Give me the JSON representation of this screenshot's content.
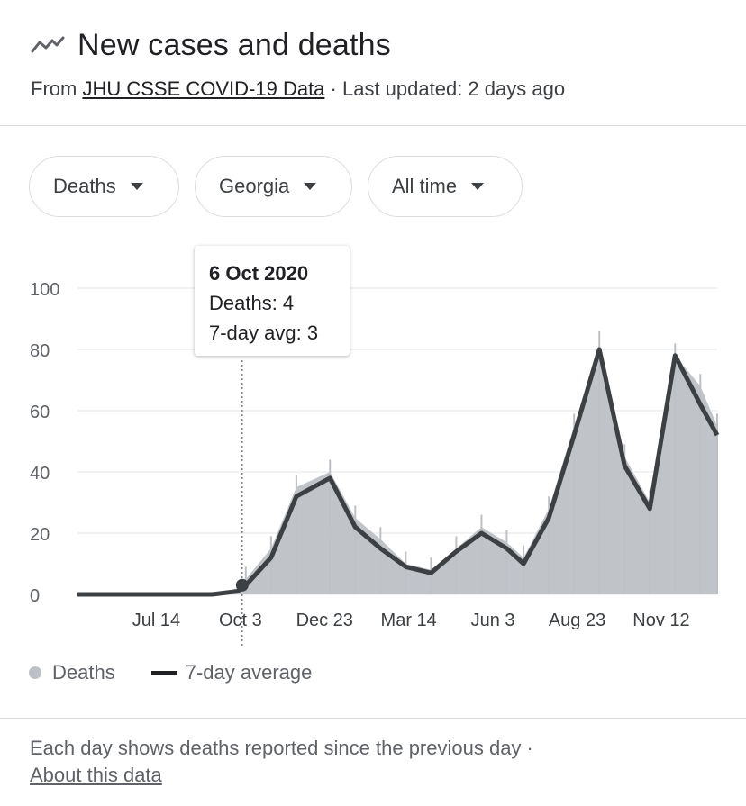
{
  "header": {
    "icon": "trend-line-icon",
    "title": "New cases and deaths",
    "source_prefix": "From",
    "source_link": "JHU CSSE COVID-19 Data",
    "updated": "· Last updated: 2 days ago"
  },
  "filters": {
    "metric": "Deaths",
    "region": "Georgia",
    "range": "All time"
  },
  "tooltip": {
    "date": "6 Oct 2020",
    "deaths_line": "Deaths: 4",
    "avg_line": "7-day avg: 3"
  },
  "legend": {
    "deaths": "Deaths",
    "avg": "7-day average"
  },
  "footer": {
    "note": "Each day shows deaths reported since the previous day  ·",
    "link": "About this data"
  },
  "colors": {
    "bars": "#bdc1c6",
    "line": "#3c4043",
    "grid": "#e8eaed",
    "highlight": "#f9c531"
  },
  "chart_data": {
    "type": "area",
    "y_ticks": [
      "0",
      "20",
      "40",
      "60",
      "80",
      "100"
    ],
    "ylim": [
      0,
      100
    ],
    "x_ticks": [
      "Jul 14",
      "Oct 3",
      "Dec 23",
      "Mar 14",
      "Jun 3",
      "Aug 23",
      "Nov 12"
    ],
    "x_tick_index": [
      1,
      2,
      3,
      4,
      5,
      6,
      7
    ],
    "series": [
      {
        "name": "Deaths",
        "x": [
          0.0,
          0.8,
          1.6,
          1.9,
          2.0,
          2.3,
          2.6,
          3.0,
          3.3,
          3.6,
          3.9,
          4.2,
          4.5,
          4.8,
          5.1,
          5.3,
          5.6,
          5.9,
          6.2,
          6.5,
          6.8,
          7.1,
          7.4,
          7.6
        ],
        "values": [
          0,
          0,
          0,
          2,
          5,
          15,
          35,
          40,
          25,
          18,
          10,
          8,
          15,
          22,
          17,
          12,
          28,
          55,
          82,
          45,
          30,
          78,
          68,
          55
        ]
      },
      {
        "name": "7-day average",
        "x": [
          0.0,
          0.8,
          1.6,
          1.9,
          2.0,
          2.3,
          2.6,
          3.0,
          3.3,
          3.6,
          3.9,
          4.2,
          4.5,
          4.8,
          5.1,
          5.3,
          5.6,
          5.9,
          6.2,
          6.5,
          6.8,
          7.1,
          7.4,
          7.6
        ],
        "values": [
          0,
          0,
          0,
          1,
          3,
          12,
          32,
          38,
          22,
          15,
          9,
          7,
          14,
          20,
          15,
          10,
          25,
          52,
          80,
          42,
          28,
          78,
          62,
          52
        ]
      }
    ],
    "legend_position": "bottom-left",
    "grid": true
  }
}
